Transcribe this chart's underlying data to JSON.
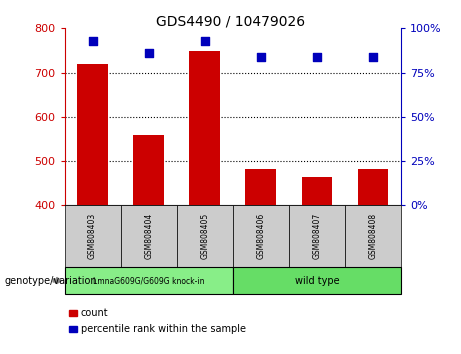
{
  "title": "GDS4490 / 10479026",
  "samples": [
    "GSM808403",
    "GSM808404",
    "GSM808405",
    "GSM808406",
    "GSM808407",
    "GSM808408"
  ],
  "counts": [
    720,
    560,
    748,
    482,
    463,
    483
  ],
  "percentile_ranks": [
    93,
    86,
    93,
    84,
    84,
    84
  ],
  "ylim_left": [
    400,
    800
  ],
  "yticks_left": [
    400,
    500,
    600,
    700,
    800
  ],
  "ylim_right": [
    0,
    100
  ],
  "yticks_right": [
    0,
    25,
    50,
    75,
    100
  ],
  "bar_color": "#cc0000",
  "dot_color": "#0000bb",
  "group1_label": "LmnaG609G/G609G knock-in",
  "group2_label": "wild type",
  "group1_color": "#88ee88",
  "group2_color": "#66dd66",
  "sample_box_color": "#cccccc",
  "legend_count": "count",
  "legend_percentile": "percentile rank within the sample",
  "genotype_label": "genotype/variation",
  "background_color": "#ffffff",
  "bar_width": 0.55,
  "dot_size": 28,
  "grid_yticks": [
    500,
    600,
    700
  ]
}
